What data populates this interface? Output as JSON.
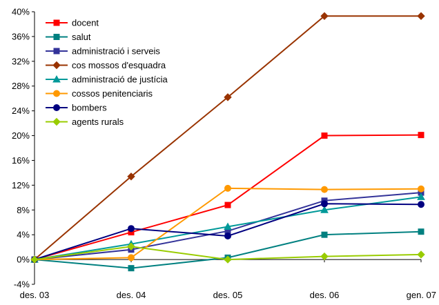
{
  "chart_data": {
    "type": "line",
    "categories": [
      "des. 03",
      "des. 04",
      "des. 05",
      "des. 06",
      "gen. 07"
    ],
    "ylim": [
      -4,
      40
    ],
    "yticks": [
      -4,
      0,
      4,
      8,
      12,
      16,
      20,
      24,
      28,
      32,
      36,
      40
    ],
    "ytick_labels": [
      "-4%",
      "0%",
      "4%",
      "8%",
      "12%",
      "16%",
      "20%",
      "24%",
      "28%",
      "32%",
      "36%",
      "40%"
    ],
    "grid": false,
    "legend": "top-left",
    "series": [
      {
        "name": "docent",
        "color": "#ff0000",
        "marker": "square",
        "values": [
          0,
          4.4,
          8.8,
          20.0,
          20.1
        ]
      },
      {
        "name": "salut",
        "color": "#008080",
        "marker": "square",
        "values": [
          0,
          -1.4,
          0.3,
          4.0,
          4.5
        ]
      },
      {
        "name": "administració i serveis",
        "color": "#333399",
        "marker": "square",
        "values": [
          0,
          1.6,
          4.6,
          9.5,
          10.8
        ]
      },
      {
        "name": "cos mossos d'esquadra",
        "color": "#993300",
        "marker": "diamond",
        "values": [
          0,
          13.4,
          26.2,
          39.3,
          39.3
        ]
      },
      {
        "name": "administració de justícia",
        "color": "#009999",
        "marker": "triangle",
        "values": [
          0,
          2.5,
          5.3,
          8.0,
          10.1
        ]
      },
      {
        "name": "cossos penitenciaris",
        "color": "#ff9900",
        "marker": "circle",
        "values": [
          0,
          0.3,
          11.5,
          11.3,
          11.4
        ]
      },
      {
        "name": "bombers",
        "color": "#000080",
        "marker": "circle",
        "values": [
          0,
          5.0,
          3.8,
          9.0,
          8.9
        ]
      },
      {
        "name": "agents rurals",
        "color": "#99cc00",
        "marker": "diamond",
        "values": [
          0,
          2.1,
          0.0,
          0.5,
          0.8
        ]
      }
    ]
  }
}
